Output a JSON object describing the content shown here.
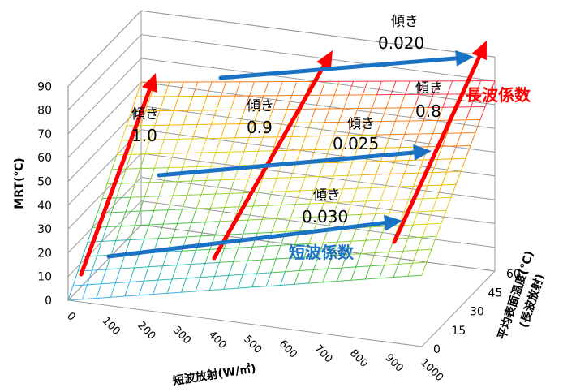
{
  "chart_data": {
    "type": "surface3d",
    "z_axis": {
      "label": "MRT(℃)",
      "ticks": [
        0,
        10,
        20,
        30,
        40,
        50,
        60,
        70,
        80,
        90
      ],
      "range": [
        0,
        90
      ]
    },
    "x_axis": {
      "label": "短波放射(W/㎡)",
      "ticks": [
        0,
        100,
        200,
        300,
        400,
        500,
        600,
        700,
        800,
        900,
        1000
      ],
      "range": [
        0,
        1000
      ]
    },
    "y_axis": {
      "label_line1": "平均表面温度(℃)",
      "label_line2": "(長波放射)",
      "ticks": [
        0,
        15,
        30,
        45,
        60
      ],
      "range": [
        0,
        60
      ]
    },
    "surface_anchor_values": {
      "mrt_at_sw0_t0": 0,
      "mrt_at_sw1000_t0": 30,
      "mrt_at_sw0_t60": 60,
      "mrt_at_sw1000_t60": 80
    },
    "grid": true,
    "annotations": {
      "longwave_label": "長波係数",
      "shortwave_label": "短波係数",
      "slope_word": "傾き",
      "longwave_slopes": [
        "1.0",
        "0.9",
        "0.8"
      ],
      "shortwave_slopes": [
        "0.030",
        "0.025",
        "0.020"
      ]
    },
    "colors": {
      "arrow_longwave": "#ff0000",
      "arrow_shortwave": "#1a72c4",
      "longwave_text": "#ff0000",
      "shortwave_text": "#1a72c4",
      "band_0_10": "#3ab0e8",
      "band_10_20": "#2fb8b0",
      "band_20_30": "#4cc24c",
      "band_30_40": "#8ed030",
      "band_40_50": "#e0d020",
      "band_50_60": "#f5b000",
      "band_60_70": "#f08020",
      "band_70_80": "#ff3040",
      "band_80_90": "#e040c0",
      "band_90_100": "#a050e0"
    }
  }
}
